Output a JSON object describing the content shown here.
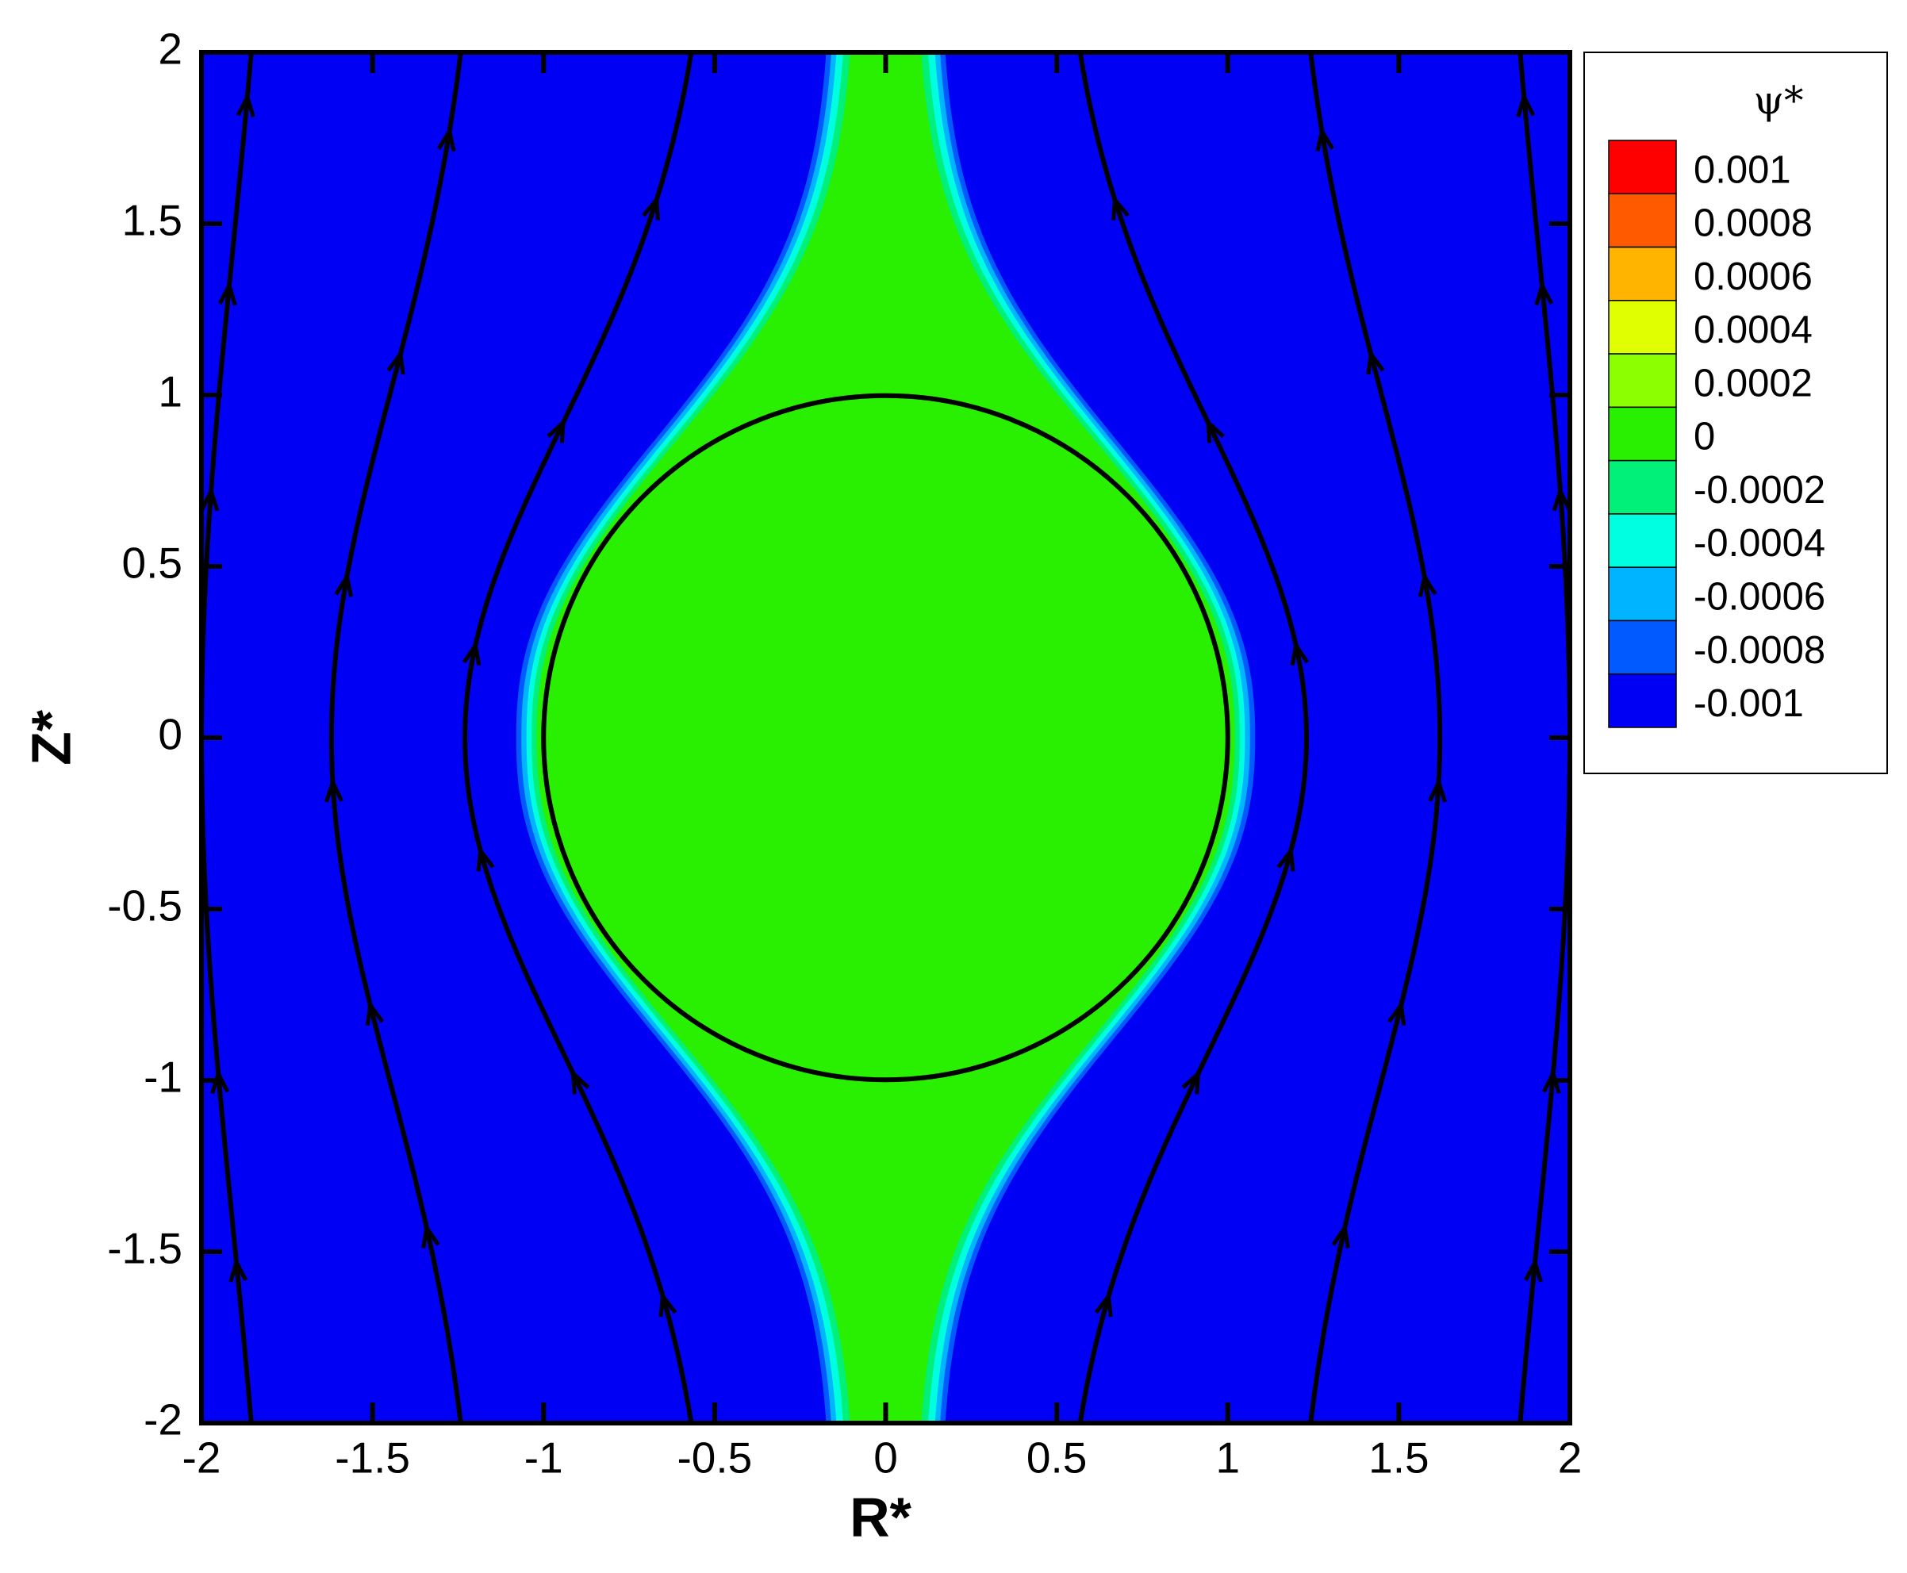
{
  "chart_data": {
    "type": "contour",
    "x_label": "R*",
    "y_label": "Z*",
    "xlim": [
      -2,
      2
    ],
    "ylim": [
      -2,
      2
    ],
    "xticks": [
      -2,
      -1.5,
      -1,
      -0.5,
      0,
      0.5,
      1,
      1.5,
      2
    ],
    "yticks": [
      -2,
      -1.5,
      -1,
      -0.5,
      0,
      0.5,
      1,
      1.5,
      2
    ],
    "colorbar": {
      "title": "ψ*",
      "levels": [
        0.001,
        0.0008,
        0.0006,
        0.0004,
        0.0002,
        0,
        -0.0002,
        -0.0004,
        -0.0006,
        -0.0008,
        -0.001
      ],
      "colors": [
        "#ff0000",
        "#ff5a00",
        "#ffb400",
        "#e0ff00",
        "#8cff00",
        "#28f000",
        "#00f07a",
        "#00ffe0",
        "#00b4ff",
        "#005aff",
        "#0000f5"
      ]
    }
  }
}
